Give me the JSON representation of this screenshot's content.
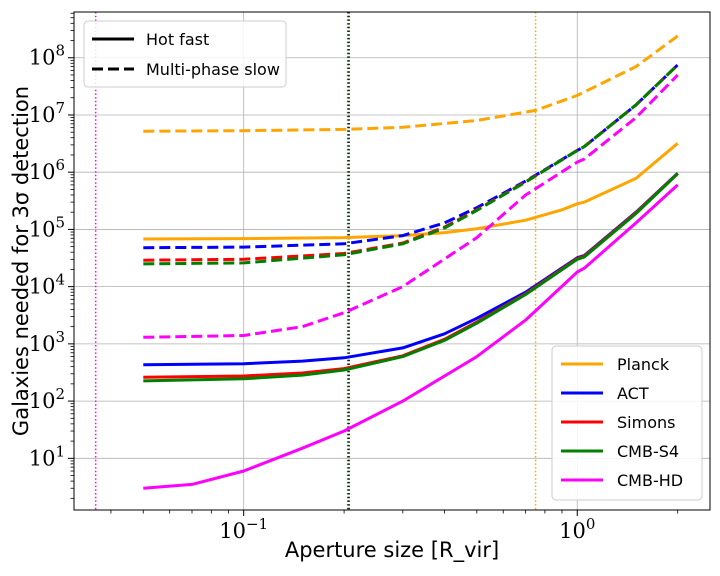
{
  "chart_data": {
    "type": "line",
    "title": "",
    "xlabel": "Aperture size [R_vir]",
    "ylabel": "Galaxies needed for 3σ detection",
    "xscale": "log",
    "yscale": "log",
    "xlim": [
      0.031,
      2.5
    ],
    "ylim": [
      1.25,
      630000000
    ],
    "grid": true,
    "x_ticks": [
      {
        "value": 0.1,
        "base": "10",
        "exp": "−1"
      },
      {
        "value": 1,
        "base": "10",
        "exp": "0"
      }
    ],
    "y_ticks": [
      {
        "value": 10,
        "base": "10",
        "exp": "1"
      },
      {
        "value": 100,
        "base": "10",
        "exp": "2"
      },
      {
        "value": 1000,
        "base": "10",
        "exp": "3"
      },
      {
        "value": 10000,
        "base": "10",
        "exp": "4"
      },
      {
        "value": 100000,
        "base": "10",
        "exp": "5"
      },
      {
        "value": 1000000,
        "base": "10",
        "exp": "6"
      },
      {
        "value": 10000000,
        "base": "10",
        "exp": "7"
      },
      {
        "value": 100000000,
        "base": "10",
        "exp": "8"
      }
    ],
    "vlines": [
      {
        "x": 0.036,
        "color": "#ff00ff"
      },
      {
        "x": 0.205,
        "color": "#008000"
      },
      {
        "x": 0.205,
        "color": "#000000"
      },
      {
        "x": 0.75,
        "color": "#ffa500"
      }
    ],
    "style_legend": [
      {
        "label": "Hot fast",
        "dash": "solid"
      },
      {
        "label": "Multi-phase slow",
        "dash": "dashed"
      }
    ],
    "experiments": [
      {
        "name": "Planck",
        "color": "#ffa500"
      },
      {
        "name": "ACT",
        "color": "#0000ff"
      },
      {
        "name": "Simons",
        "color": "#ff0000"
      },
      {
        "name": "CMB-S4",
        "color": "#008000"
      },
      {
        "name": "CMB-HD",
        "color": "#ff00ff"
      }
    ],
    "series": [
      {
        "name": "Multi-phase slow Planck",
        "experiment": "Planck",
        "style": "dashed",
        "x": [
          0.05,
          0.1,
          0.2,
          0.3,
          0.5,
          0.75,
          1.0,
          1.5,
          2.0
        ],
        "y": [
          5200000,
          5300000,
          5600000,
          6100000,
          8000000,
          12000000,
          22000000,
          70000000,
          240000000
        ]
      },
      {
        "name": "Hot fast Planck",
        "experiment": "Planck",
        "style": "solid",
        "x": [
          0.05,
          0.1,
          0.2,
          0.3,
          0.4,
          0.5,
          0.7,
          0.9,
          1.0,
          1.05,
          1.5,
          2.0
        ],
        "y": [
          68000,
          69000,
          72000,
          78000,
          88000,
          103000,
          145000,
          220000,
          280000,
          300000,
          780000,
          3200000
        ]
      },
      {
        "name": "Multi-phase slow ACT",
        "experiment": "ACT",
        "style": "dashed",
        "x": [
          0.05,
          0.1,
          0.2,
          0.3,
          0.4,
          0.5,
          0.7,
          1.0,
          1.05,
          1.5,
          2.0
        ],
        "y": [
          48000,
          49000,
          56000,
          78000,
          130000,
          240000,
          700000,
          2400000,
          2800000,
          15000000,
          75000000
        ]
      },
      {
        "name": "Multi-phase slow Simons",
        "experiment": "Simons",
        "style": "dashed",
        "x": [
          0.05,
          0.1,
          0.2,
          0.3,
          0.4,
          0.5,
          0.7,
          1.0,
          1.05,
          1.5,
          2.0
        ],
        "y": [
          29000,
          30000,
          38000,
          58000,
          110000,
          220000,
          680000,
          2400000,
          2800000,
          15000000,
          75000000
        ]
      },
      {
        "name": "Multi-phase slow CMB-S4",
        "experiment": "CMB-S4",
        "style": "dashed",
        "x": [
          0.05,
          0.1,
          0.2,
          0.3,
          0.4,
          0.5,
          0.7,
          1.0,
          1.05,
          1.5,
          2.0
        ],
        "y": [
          25000,
          26000,
          36000,
          56000,
          106000,
          215000,
          670000,
          2400000,
          2800000,
          15000000,
          75000000
        ]
      },
      {
        "name": "Multi-phase slow CMB-HD",
        "experiment": "CMB-HD",
        "style": "dashed",
        "x": [
          0.05,
          0.1,
          0.15,
          0.2,
          0.3,
          0.5,
          0.7,
          1.0,
          1.05,
          1.5,
          2.0
        ],
        "y": [
          1300,
          1400,
          2000,
          3500,
          10000,
          72000,
          400000,
          1500000,
          1700000,
          9000000,
          50000000
        ]
      },
      {
        "name": "Hot fast ACT",
        "experiment": "ACT",
        "style": "solid",
        "x": [
          0.05,
          0.1,
          0.15,
          0.2,
          0.3,
          0.4,
          0.5,
          0.7,
          1.0,
          1.05,
          1.5,
          2.0
        ],
        "y": [
          430,
          450,
          500,
          570,
          850,
          1500,
          2800,
          8000,
          32000,
          35000,
          200000,
          960000
        ]
      },
      {
        "name": "Hot fast Simons",
        "experiment": "Simons",
        "style": "solid",
        "x": [
          0.05,
          0.1,
          0.15,
          0.2,
          0.3,
          0.4,
          0.5,
          0.7,
          1.0,
          1.05,
          1.5,
          2.0
        ],
        "y": [
          260,
          275,
          310,
          370,
          620,
          1200,
          2400,
          7500,
          31000,
          34000,
          195000,
          950000
        ]
      },
      {
        "name": "Hot fast CMB-S4",
        "experiment": "CMB-S4",
        "style": "solid",
        "x": [
          0.05,
          0.1,
          0.15,
          0.2,
          0.3,
          0.4,
          0.5,
          0.7,
          1.0,
          1.05,
          1.5,
          2.0
        ],
        "y": [
          225,
          245,
          285,
          350,
          600,
          1150,
          2300,
          7300,
          30000,
          33000,
          190000,
          940000
        ]
      },
      {
        "name": "Hot fast CMB-HD",
        "experiment": "CMB-HD",
        "style": "solid",
        "x": [
          0.05,
          0.07,
          0.1,
          0.15,
          0.2,
          0.3,
          0.5,
          0.7,
          1.0,
          1.05,
          1.5,
          2.0
        ],
        "y": [
          3,
          3.5,
          6,
          15,
          30,
          100,
          600,
          2600,
          18000,
          21000,
          130000,
          600000
        ]
      }
    ]
  }
}
